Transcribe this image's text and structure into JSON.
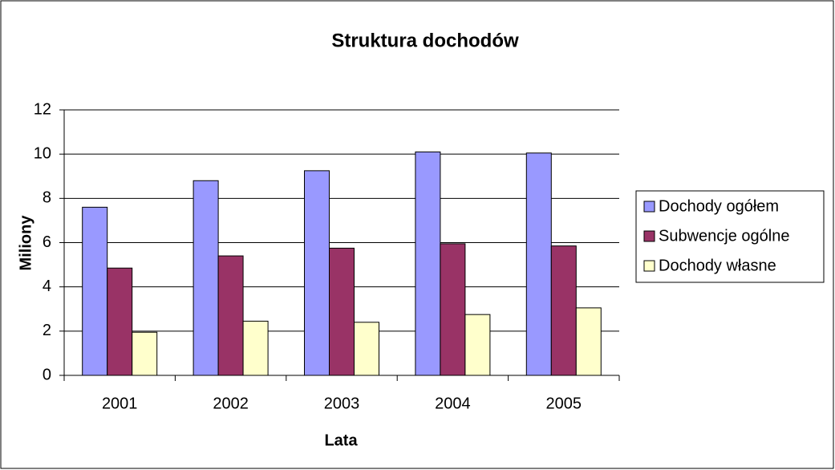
{
  "chart_data": {
    "type": "bar",
    "title": "Struktura dochodów",
    "x_label": "Lata",
    "y_label": "Miliony",
    "categories": [
      "2001",
      "2002",
      "2003",
      "2004",
      "2005"
    ],
    "series": [
      {
        "name": "Dochody ogółem",
        "color": "#9999ff",
        "values": [
          7.6,
          8.8,
          9.25,
          10.1,
          10.05
        ]
      },
      {
        "name": "Subwencje ogólne",
        "color": "#993366",
        "values": [
          4.85,
          5.4,
          5.75,
          5.95,
          5.85
        ]
      },
      {
        "name": "Dochody własne",
        "color": "#ffffcc",
        "values": [
          1.95,
          2.45,
          2.4,
          2.75,
          3.05
        ]
      }
    ],
    "ylim": [
      0,
      12
    ],
    "yticks": [
      0,
      2,
      4,
      6,
      8,
      10,
      12
    ],
    "grid": true,
    "legend": "right"
  }
}
